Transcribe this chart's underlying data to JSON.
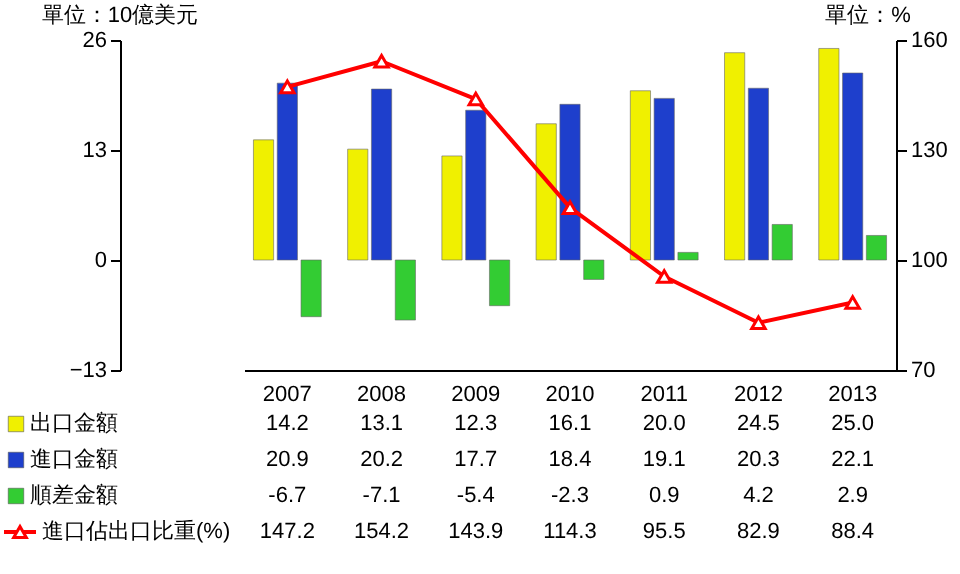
{
  "chart_data": {
    "type": "bar",
    "ylabel": "單位：10億美元",
    "y2label": "單位：%",
    "categories": [
      "2007",
      "2008",
      "2009",
      "2010",
      "2011",
      "2012",
      "2013"
    ],
    "series": [
      {
        "name": "出口金額",
        "color": "#f0f000",
        "values": [
          14.2,
          13.1,
          12.3,
          16.1,
          20.0,
          24.5,
          25.0
        ],
        "value_labels": [
          "14.2",
          "13.1",
          "12.3",
          "16.1",
          "20.0",
          "24.5",
          "25.0"
        ]
      },
      {
        "name": "進口金額",
        "color": "#1e3fcc",
        "values": [
          20.9,
          20.2,
          17.7,
          18.4,
          19.1,
          20.3,
          22.1
        ],
        "value_labels": [
          "20.9",
          "20.2",
          "17.7",
          "18.4",
          "19.1",
          "20.3",
          "22.1"
        ]
      },
      {
        "name": "順差金額",
        "color": "#33cc33",
        "values": [
          -6.7,
          -7.1,
          -5.4,
          -2.3,
          0.9,
          4.2,
          2.9
        ],
        "value_labels": [
          "-6.7",
          "-7.1",
          "-5.4",
          "-2.3",
          "0.9",
          "4.2",
          "2.9"
        ]
      },
      {
        "name": "進口佔出口比重(%)",
        "color": "#ff0000",
        "type": "line",
        "axis": "y2",
        "values": [
          147.2,
          154.2,
          143.9,
          114.3,
          95.5,
          82.9,
          88.4
        ],
        "value_labels": [
          "147.2",
          "154.2",
          "143.9",
          "114.3",
          "95.5",
          "82.9",
          "88.4"
        ]
      }
    ],
    "ylim": [
      -13,
      26
    ],
    "yticks": [
      -13,
      0,
      13,
      26
    ],
    "y2lim": [
      70,
      160
    ],
    "y2ticks": [
      70,
      100,
      130,
      160
    ],
    "grid": false,
    "legend": "bottom",
    "marker": "triangle"
  }
}
